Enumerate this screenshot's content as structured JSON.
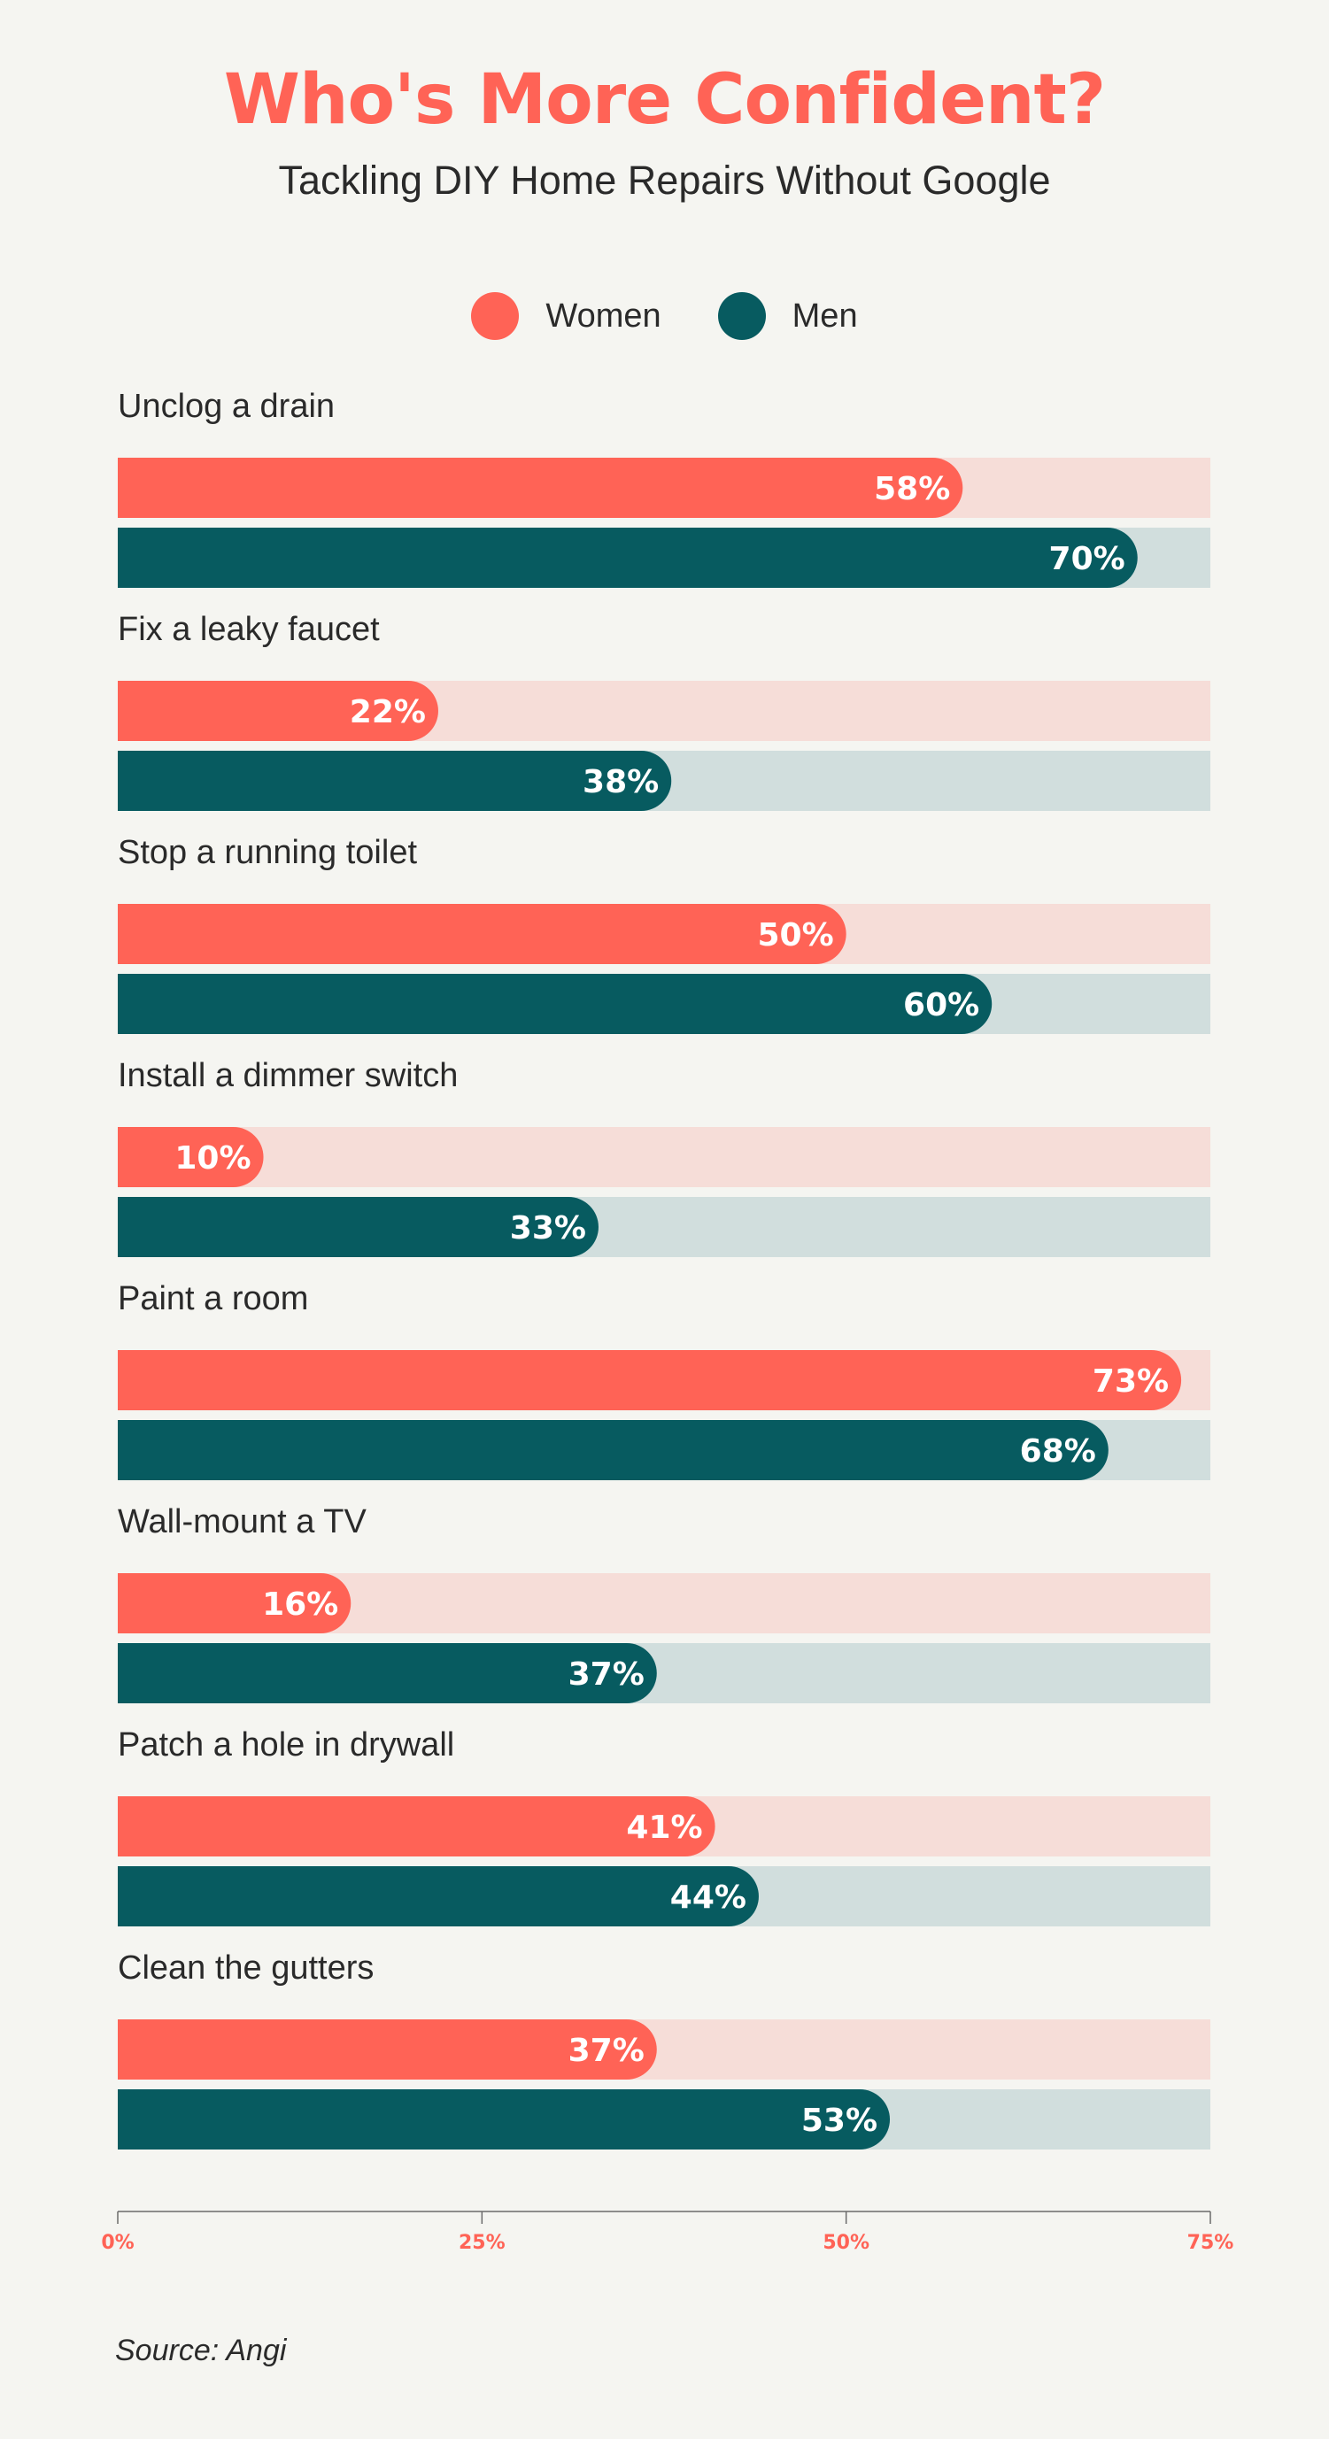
{
  "chart_data": {
    "type": "bar",
    "orientation": "horizontal",
    "title": "Who's More Confident?",
    "subtitle": "Tackling DIY Home Repairs Without Google",
    "categories": [
      "Unclog a drain",
      "Fix a leaky faucet",
      "Stop a running toilet",
      "Install a dimmer switch",
      "Paint a room",
      "Wall-mount a TV",
      "Patch a hole in drywall",
      "Clean the gutters"
    ],
    "series": [
      {
        "name": "Women",
        "color": "#ff6356",
        "track_color": "#f6ddd8",
        "values": [
          58,
          22,
          50,
          10,
          73,
          16,
          41,
          37
        ]
      },
      {
        "name": "Men",
        "color": "#075b60",
        "track_color": "#d1dedd",
        "values": [
          70,
          38,
          60,
          33,
          68,
          37,
          44,
          53
        ]
      }
    ],
    "xlim": [
      0,
      75
    ],
    "xticks": [
      0,
      25,
      50,
      75
    ],
    "xtick_labels": [
      "0%",
      "25%",
      "50%",
      "75%"
    ],
    "value_suffix": "%",
    "legend_position": "top-center",
    "grid": false
  },
  "legend": {
    "women_label": "Women",
    "men_label": "Men"
  },
  "source": "Source: Angi"
}
